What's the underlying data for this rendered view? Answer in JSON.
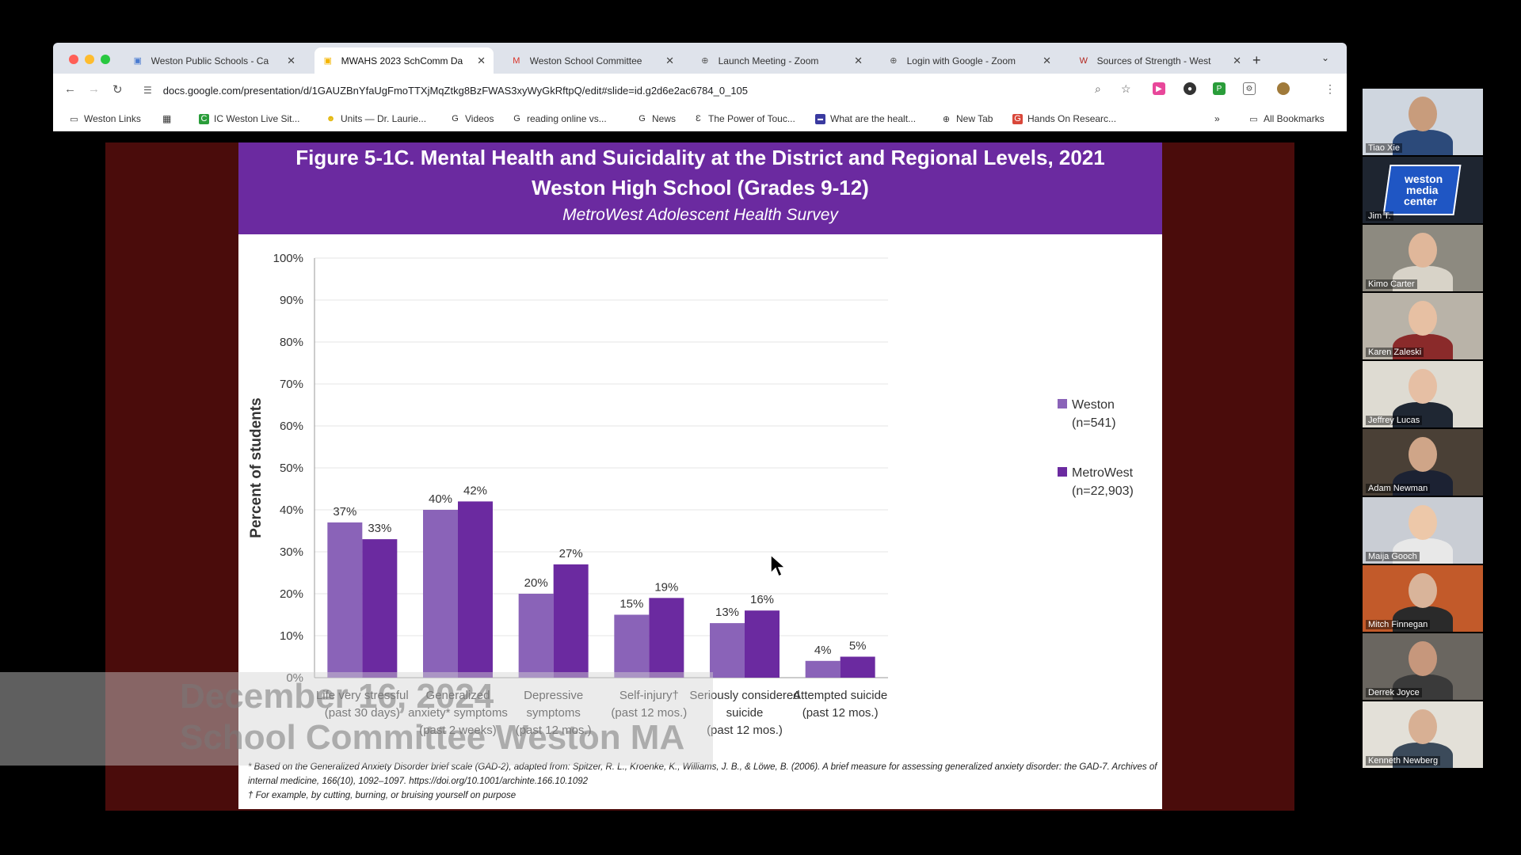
{
  "browser": {
    "tabs": [
      {
        "title": "Weston Public Schools - Ca",
        "icon": "google-sheets-icon",
        "color": "#4a7bd0",
        "active": false
      },
      {
        "title": "MWAHS 2023 SchComm Da",
        "icon": "google-slides-icon",
        "color": "#f4b400",
        "active": true
      },
      {
        "title": "Weston School Committee",
        "icon": "gmail-icon",
        "color": "#d93025",
        "active": false
      },
      {
        "title": "Launch Meeting - Zoom",
        "icon": "globe-icon",
        "color": "#555555",
        "active": false
      },
      {
        "title": "Login with Google - Zoom",
        "icon": "globe-icon",
        "color": "#555555",
        "active": false
      },
      {
        "title": "Sources of Strength - West",
        "icon": "w-logo-icon",
        "color": "#b3261e",
        "active": false
      }
    ],
    "url": "docs.google.com/presentation/d/1GAUZBnYfaUgFmoTTXjMqZtkg8BzFWAS3xyWyGkRftpQ/edit#slide=id.g2d6e2ac6784_0_105",
    "bookmarks": [
      "Weston Links",
      "IC Weston Live Sit...",
      "Units — Dr. Laurie...",
      "Videos",
      "reading online vs...",
      "News",
      "The Power of Touc...",
      "What are the healt...",
      "New Tab",
      "Hands On Researc..."
    ],
    "all_bookmarks": "All Bookmarks",
    "more_bookmarks": "»"
  },
  "slide": {
    "title_line1": "Figure 5-1C. Mental Health and Suicidality at the District and Regional Levels, 2021",
    "title_line2": "Weston High School (Grades 9-12)",
    "subtitle": "MetroWest Adolescent Health Survey",
    "footnote1": "* Based on the Generalized Anxiety Disorder brief scale (GAD-2), adapted from: Spitzer, R. L., Kroenke, K., Williams, J. B., & Löwe, B. (2006). A brief measure for assessing generalized anxiety disorder: the GAD-7. Archives of internal medicine, 166(10), 1092–1097. https://doi.org/10.1001/archinte.166.10.1092",
    "footnote2": "† For example, by cutting, burning, or bruising yourself on purpose"
  },
  "chart_data": {
    "type": "bar",
    "ylabel": "Percent of students",
    "ylim": [
      0,
      100
    ],
    "yticks": [
      "0%",
      "10%",
      "20%",
      "30%",
      "40%",
      "50%",
      "60%",
      "70%",
      "80%",
      "90%",
      "100%"
    ],
    "categories": [
      [
        "Life very stressful",
        "(past 30 days)"
      ],
      [
        "Generalized",
        "anxiety* symptoms",
        "(past 2 weeks)"
      ],
      [
        "Depressive",
        "symptoms",
        "(past 12 mos.)"
      ],
      [
        "Self-injury†",
        "(past 12 mos.)"
      ],
      [
        "Seriously considered",
        "suicide",
        "(past 12 mos.)"
      ],
      [
        "Attempted suicide",
        "(past 12 mos.)"
      ]
    ],
    "series": [
      {
        "name": "Weston",
        "n_label": "(n=541)",
        "color": "#8a63b8",
        "values": [
          37,
          40,
          20,
          15,
          13,
          4
        ]
      },
      {
        "name": "MetroWest",
        "n_label": "(n=22,903)",
        "color": "#6b2aa0",
        "values": [
          33,
          42,
          27,
          19,
          16,
          5
        ]
      }
    ],
    "legend": "right",
    "grid": true
  },
  "watermark": {
    "line1": "December 16, 2024",
    "line2": "School Committee Weston MA"
  },
  "participants": [
    {
      "name": "Tiao Xie",
      "type": "video",
      "bg": "#cfd6df",
      "skin": "#c89c7c",
      "shirt": "#2c4a7a"
    },
    {
      "name": "Jim T.",
      "type": "logo",
      "logo_lines": [
        "weston",
        "media",
        "center"
      ]
    },
    {
      "name": "Kimo Carter",
      "type": "video",
      "bg": "#8d8a80",
      "skin": "#e0b79a",
      "shirt": "#d8d3c8"
    },
    {
      "name": "Karen Zaleski",
      "type": "video",
      "bg": "#b9b3a8",
      "skin": "#e7c0a3",
      "shirt": "#8a2a2a"
    },
    {
      "name": "Jeffrey Lucas",
      "type": "video",
      "bg": "#dedbd2",
      "skin": "#e6bfa4",
      "shirt": "#1f2733"
    },
    {
      "name": "Adam Newman",
      "type": "video",
      "bg": "#4a4036",
      "skin": "#cfa588",
      "shirt": "#1c2233"
    },
    {
      "name": "Maija Gooch",
      "type": "video",
      "bg": "#c9cdd4",
      "skin": "#edc8a9",
      "shirt": "#e8e8e8"
    },
    {
      "name": "Mitch Finnegan",
      "type": "video",
      "bg": "#c25a2a",
      "skin": "#d9b49a",
      "shirt": "#2a2a2a"
    },
    {
      "name": "Derrek Joyce",
      "type": "video",
      "bg": "#6a6660",
      "skin": "#c6977c",
      "shirt": "#3a3a3a"
    },
    {
      "name": "Kenneth Newberg",
      "type": "video",
      "bg": "#e3e0d8",
      "skin": "#d8b094",
      "shirt": "#3b4a5a"
    }
  ]
}
